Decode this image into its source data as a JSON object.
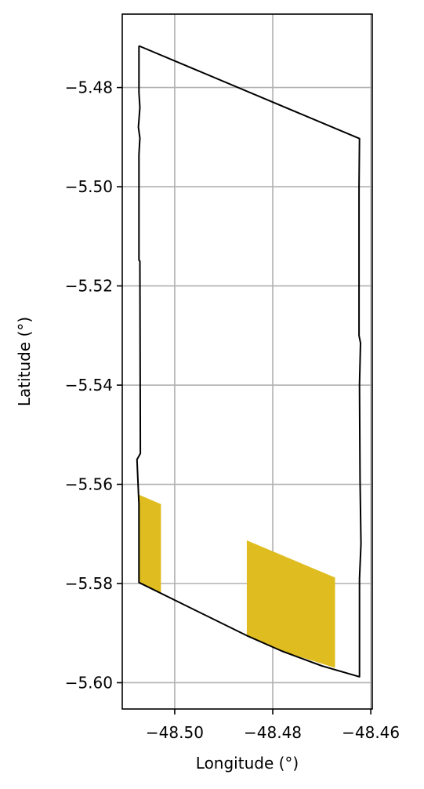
{
  "chart_data": {
    "type": "map",
    "xlabel": "Longitude (°)",
    "ylabel": "Latitude (°)",
    "xlim": [
      -48.5107,
      -48.4597
    ],
    "ylim": [
      -5.6053,
      -5.4652
    ],
    "xticks": [
      -48.5,
      -48.48,
      -48.46
    ],
    "xtick_labels": [
      "−48.50",
      "−48.48",
      "−48.46"
    ],
    "yticks": [
      -5.48,
      -5.5,
      -5.52,
      -5.54,
      -5.56,
      -5.58,
      -5.6
    ],
    "ytick_labels": [
      "−5.48",
      "−5.50",
      "−5.52",
      "−5.54",
      "−5.56",
      "−5.58",
      "−5.60"
    ],
    "grid": true,
    "boundary": {
      "color": "#000000",
      "points": [
        [
          -48.5073,
          -5.4716
        ],
        [
          -48.4623,
          -5.4903
        ],
        [
          -48.4624,
          -5.5
        ],
        [
          -48.4624,
          -5.53
        ],
        [
          -48.4621,
          -5.5315
        ],
        [
          -48.4623,
          -5.54
        ],
        [
          -48.4622,
          -5.559
        ],
        [
          -48.462,
          -5.572
        ],
        [
          -48.4623,
          -5.579
        ],
        [
          -48.4623,
          -5.5988
        ],
        [
          -48.47,
          -5.5966
        ],
        [
          -48.4782,
          -5.5936
        ],
        [
          -48.4853,
          -5.5905
        ],
        [
          -48.5073,
          -5.5798
        ],
        [
          -48.5073,
          -5.564
        ],
        [
          -48.5077,
          -5.555
        ],
        [
          -48.507,
          -5.5538
        ],
        [
          -48.5071,
          -5.515
        ],
        [
          -48.5073,
          -5.5148
        ],
        [
          -48.5073,
          -5.4935
        ],
        [
          -48.5071,
          -5.4902
        ],
        [
          -48.5074,
          -5.488
        ],
        [
          -48.5071,
          -5.484
        ],
        [
          -48.5073,
          -5.481
        ],
        [
          -48.5073,
          -5.4716
        ]
      ]
    },
    "patches": [
      {
        "color": "#DFBD20",
        "points": [
          [
            -48.5073,
            -5.5621
          ],
          [
            -48.5028,
            -5.564
          ],
          [
            -48.5028,
            -5.582
          ],
          [
            -48.5073,
            -5.5798
          ]
        ]
      },
      {
        "color": "#DFBD20",
        "points": [
          [
            -48.4853,
            -5.5713
          ],
          [
            -48.4673,
            -5.5788
          ],
          [
            -48.4673,
            -5.597
          ],
          [
            -48.4782,
            -5.5936
          ],
          [
            -48.4853,
            -5.5905
          ]
        ]
      }
    ]
  }
}
